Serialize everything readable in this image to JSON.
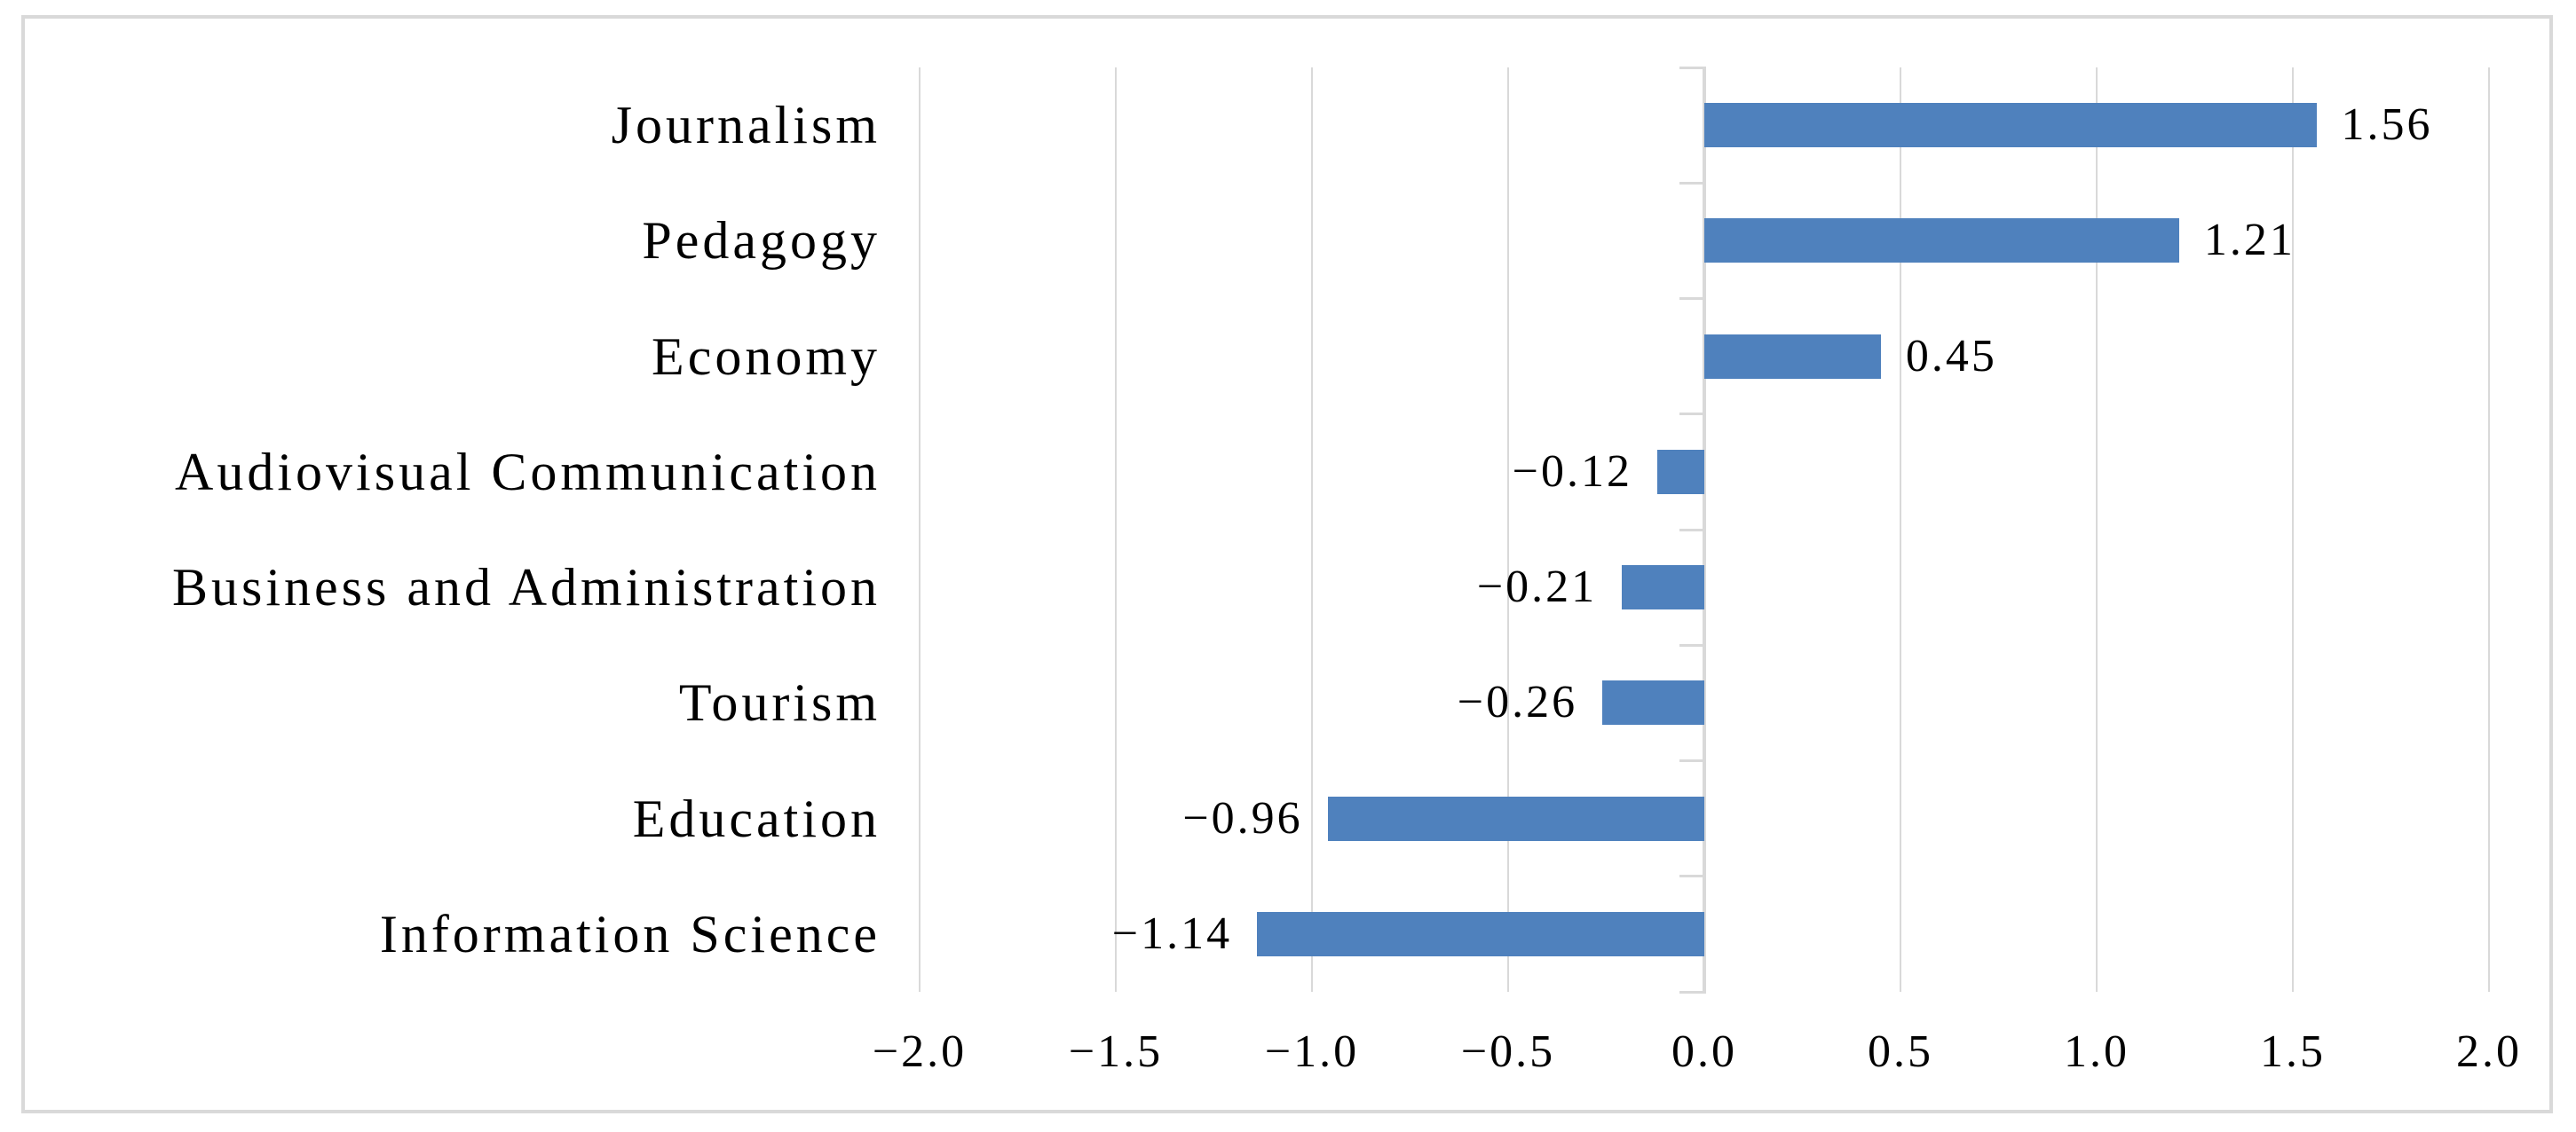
{
  "figure": {
    "background": "#FFFFFF",
    "border_color": "#D9D9D9",
    "title": ""
  },
  "chart_data": {
    "type": "bar",
    "orientation": "horizontal",
    "title": "",
    "xlabel": "",
    "ylabel": "",
    "categories": [
      "Journalism",
      "Pedagogy",
      "Economy",
      "Audiovisual Communication",
      "Business and Administration",
      "Tourism",
      "Education",
      "Information Science"
    ],
    "values": [
      1.56,
      1.21,
      0.45,
      -0.12,
      -0.21,
      -0.26,
      -0.96,
      -1.14
    ],
    "data_labels": [
      "1.56",
      "1.21",
      "0.45",
      "−0.12",
      "−0.21",
      "−0.26",
      "−0.96",
      "−1.14"
    ],
    "xlim": [
      -2.0,
      2.0
    ],
    "xticks": [
      -2.0,
      -1.5,
      -1.0,
      -0.5,
      0.0,
      0.5,
      1.0,
      1.5,
      2.0
    ],
    "xtick_labels": [
      "−2.0",
      "−1.5",
      "−1.0",
      "−0.5",
      "0.0",
      "0.5",
      "1.0",
      "1.5",
      "2.0"
    ],
    "grid": true,
    "legend": null,
    "bar_color": "#4F81BD",
    "gridline_color": "#D9D9D9",
    "axis_color": "#D9D9D9",
    "text_color": "#000000"
  }
}
